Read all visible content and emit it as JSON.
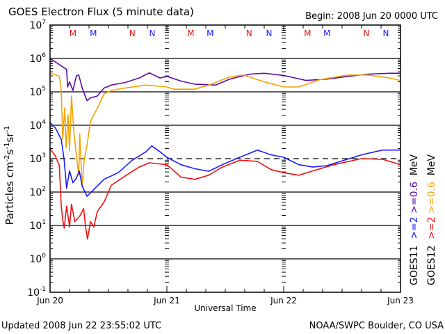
{
  "header": {
    "title": "GOES Electron Flux (5 minute data)",
    "begin": "Begin: 2008 Jun 20 0000 UTC"
  },
  "footer": {
    "updated": "Updated 2008 Jun 22 23:55:02 UTC",
    "source": "NOAA/SWPC Boulder, CO USA"
  },
  "legend": {
    "columns": [
      {
        "satellite": "GOES11",
        "hi_label": ">=2",
        "lo_label": ">=0.6",
        "unit": "MeV",
        "hi_color": "#1a1aff",
        "lo_color": "#5a0aa8"
      },
      {
        "satellite": "GOES12",
        "hi_label": ">=2",
        "lo_label": ">=0.6",
        "unit": "MeV",
        "hi_color": "#ee1111",
        "lo_color": "#f4a200"
      }
    ]
  },
  "markers": [
    {
      "label": "M",
      "hour": 4.7,
      "color": "#ee1111"
    },
    {
      "label": "M",
      "hour": 8.9,
      "color": "#1a1aff"
    },
    {
      "label": "N",
      "hour": 16.9,
      "color": "#ee1111"
    },
    {
      "label": "N",
      "hour": 21.0,
      "color": "#1a1aff"
    },
    {
      "label": "M",
      "hour": 28.9,
      "color": "#ee1111"
    },
    {
      "label": "M",
      "hour": 32.9,
      "color": "#1a1aff"
    },
    {
      "label": "N",
      "hour": 40.9,
      "color": "#ee1111"
    },
    {
      "label": "N",
      "hour": 45.0,
      "color": "#1a1aff"
    },
    {
      "label": "M",
      "hour": 52.9,
      "color": "#ee1111"
    },
    {
      "label": "M",
      "hour": 56.9,
      "color": "#1a1aff"
    },
    {
      "label": "N",
      "hour": 65.0,
      "color": "#ee1111"
    },
    {
      "label": "N",
      "hour": 69.0,
      "color": "#1a1aff"
    }
  ],
  "chart_data": {
    "type": "line",
    "title": "GOES Electron Flux (5 minute data)",
    "xlabel": "Universal Time",
    "ylabel": "Particles cm-2 s-1 sr-1",
    "xlim_hours": [
      0,
      72
    ],
    "x_ticks": [
      {
        "hour": 0,
        "label": "Jun 20"
      },
      {
        "hour": 24,
        "label": "Jun 21"
      },
      {
        "hour": 48,
        "label": "Jun 22"
      },
      {
        "hour": 72,
        "label": "Jun 23"
      }
    ],
    "yscale": "log",
    "ylim_exp": [
      -1,
      7
    ],
    "y_ticks": [
      {
        "base": "10",
        "exp": "7"
      },
      {
        "base": "10",
        "exp": "6"
      },
      {
        "base": "10",
        "exp": "5"
      },
      {
        "base": "10",
        "exp": "4"
      },
      {
        "base": "10",
        "exp": "3"
      },
      {
        "base": "10",
        "exp": "2"
      },
      {
        "base": "10",
        "exp": "1"
      },
      {
        "base": "10",
        "exp": "0"
      },
      {
        "base": "10",
        "exp": "-1"
      }
    ],
    "grid_solid_exp": [
      6,
      5,
      4,
      2,
      1,
      0
    ],
    "threshold_dashed_exp": 3,
    "series": [
      {
        "name": "GOES11 >=0.6 MeV",
        "color": "#5a0aa8",
        "points": [
          [
            0,
            1000000.0
          ],
          [
            2.6,
            560000.0
          ],
          [
            3.4,
            470000.0
          ],
          [
            3.6,
            140000.0
          ],
          [
            4.0,
            200000.0
          ],
          [
            4.7,
            110000.0
          ],
          [
            5.4,
            300000.0
          ],
          [
            5.9,
            320000.0
          ],
          [
            6.6,
            130000.0
          ],
          [
            7.6,
            54000.0
          ],
          [
            8.3,
            66000.0
          ],
          [
            9.7,
            75000.0
          ],
          [
            11.1,
            130000.0
          ],
          [
            12.6,
            160000.0
          ],
          [
            15.4,
            190000.0
          ],
          [
            18.3,
            260000.0
          ],
          [
            20.4,
            370000.0
          ],
          [
            22.6,
            260000.0
          ],
          [
            24,
            290000.0
          ],
          [
            26.9,
            210000.0
          ],
          [
            29.7,
            170000.0
          ],
          [
            34,
            160000.0
          ],
          [
            36.9,
            240000.0
          ],
          [
            41.1,
            340000.0
          ],
          [
            44,
            360000.0
          ],
          [
            48,
            310000.0
          ],
          [
            52.6,
            220000.0
          ],
          [
            56.9,
            240000.0
          ],
          [
            61.1,
            290000.0
          ],
          [
            65.4,
            340000.0
          ],
          [
            69.7,
            360000.0
          ],
          [
            72,
            360000.0
          ]
        ]
      },
      {
        "name": "GOES12 >=0.6 MeV",
        "color": "#f4a200",
        "points": [
          [
            0,
            370000.0
          ],
          [
            1.9,
            290000.0
          ],
          [
            2.3,
            110000.0
          ],
          [
            2.6,
            3800.0
          ],
          [
            3.0,
            33000.0
          ],
          [
            3.3,
            2100.0
          ],
          [
            3.7,
            21000.0
          ],
          [
            4.0,
            1700.0
          ],
          [
            4.4,
            75000.0
          ],
          [
            4.9,
            6000.0
          ],
          [
            5.4,
            1300.0
          ],
          [
            5.9,
            320.0
          ],
          [
            6.1,
            5600.0
          ],
          [
            6.6,
            140.0
          ],
          [
            7.0,
            900.0
          ],
          [
            7.6,
            2600.0
          ],
          [
            8.3,
            13000.0
          ],
          [
            9.7,
            32000.0
          ],
          [
            11.1,
            87000.0
          ],
          [
            12.6,
            110000.0
          ],
          [
            15.4,
            130000.0
          ],
          [
            19.7,
            160000.0
          ],
          [
            24,
            140000.0
          ],
          [
            25.4,
            120000.0
          ],
          [
            29.7,
            120000.0
          ],
          [
            32.6,
            160000.0
          ],
          [
            36.9,
            280000.0
          ],
          [
            39.7,
            320000.0
          ],
          [
            44,
            200000.0
          ],
          [
            48,
            140000.0
          ],
          [
            51.1,
            140000.0
          ],
          [
            55.4,
            230000.0
          ],
          [
            61.1,
            320000.0
          ],
          [
            65.4,
            320000.0
          ],
          [
            69.7,
            260000.0
          ],
          [
            72,
            220000.0
          ]
        ]
      },
      {
        "name": "GOES11 >=2 MeV",
        "color": "#1a1aff",
        "points": [
          [
            0,
            12000.0
          ],
          [
            1.1,
            8300.0
          ],
          [
            2.3,
            3800.0
          ],
          [
            2.9,
            900.0
          ],
          [
            3.4,
            130.0
          ],
          [
            4.0,
            430.0
          ],
          [
            4.7,
            190.0
          ],
          [
            5.4,
            260.0
          ],
          [
            6.0,
            430.0
          ],
          [
            6.6,
            150.0
          ],
          [
            7.6,
            75.0
          ],
          [
            9.0,
            120.0
          ],
          [
            11.1,
            240.0
          ],
          [
            14.0,
            380.0
          ],
          [
            16.9,
            900.0
          ],
          [
            19.7,
            1600.0
          ],
          [
            20.9,
            2400.0
          ],
          [
            22.6,
            1600.0
          ],
          [
            24,
            1100.0
          ],
          [
            26.9,
            660.0
          ],
          [
            29.7,
            500.0
          ],
          [
            32.6,
            420.0
          ],
          [
            35.4,
            660.0
          ],
          [
            38.3,
            1000.0
          ],
          [
            42.6,
            1800.0
          ],
          [
            45.4,
            1300.0
          ],
          [
            48,
            1100.0
          ],
          [
            51.1,
            660.0
          ],
          [
            54,
            560.0
          ],
          [
            56.9,
            620.0
          ],
          [
            59.7,
            830.0
          ],
          [
            64,
            1300.0
          ],
          [
            68.3,
            1800.0
          ],
          [
            72,
            1800.0
          ]
        ]
      },
      {
        "name": "GOES12 >=2 MeV",
        "color": "#ee1111",
        "points": [
          [
            0,
            2000.0
          ],
          [
            1.1,
            1200.0
          ],
          [
            1.9,
            620.0
          ],
          [
            2.3,
            38.0
          ],
          [
            2.6,
            15.0
          ],
          [
            2.9,
            8.3
          ],
          [
            3.4,
            38.0
          ],
          [
            3.9,
            12.0
          ],
          [
            4.0,
            9.0
          ],
          [
            4.4,
            43.0
          ],
          [
            5.1,
            13.0
          ],
          [
            6.1,
            19.0
          ],
          [
            6.9,
            32.0
          ],
          [
            7.3,
            9.0
          ],
          [
            7.7,
            3.9
          ],
          [
            8.3,
            13.0
          ],
          [
            9.0,
            9.0
          ],
          [
            9.7,
            26.0
          ],
          [
            11.1,
            50.0
          ],
          [
            12.6,
            160.0
          ],
          [
            15.4,
            300.0
          ],
          [
            18.3,
            560.0
          ],
          [
            20.4,
            750.0
          ],
          [
            24,
            660.0
          ],
          [
            26.9,
            280.0
          ],
          [
            29.7,
            240.0
          ],
          [
            32.6,
            320.0
          ],
          [
            35.4,
            560.0
          ],
          [
            39.0,
            900.0
          ],
          [
            42.6,
            830.0
          ],
          [
            45.4,
            470.0
          ],
          [
            48,
            380.0
          ],
          [
            51.1,
            320.0
          ],
          [
            54,
            430.0
          ],
          [
            58.3,
            660.0
          ],
          [
            64,
            1000.0
          ],
          [
            68.3,
            960.0
          ],
          [
            72,
            660.0
          ]
        ]
      }
    ]
  }
}
